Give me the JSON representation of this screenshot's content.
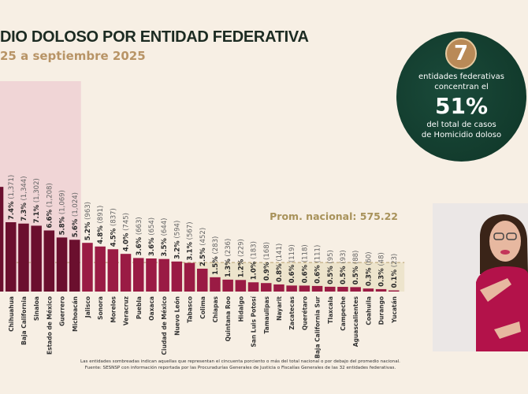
{
  "header": {
    "title": "DIO DOLOSO POR ENTIDAD FEDERATIVA",
    "subtitle": "25 a septiembre 2025"
  },
  "average_label": "Prom. nacional: 575.22",
  "notes": [
    "Las entidades sombreadas indican aquellas que representan el cincuenta porciento o más del total nacional o por debajo del promedio nacional.",
    "Fuente: SESNSP con información reportada por las Procuradurías Generales de Justicia o Fiscalías Generales de las 32 entidades federativas."
  ],
  "callout": {
    "number": "7",
    "line1": "entidades federativas",
    "line2": "concentran el",
    "percent": "51%",
    "line3": "del total de casos",
    "line4": "de Homicidio doloso"
  },
  "colors": {
    "highlight_bar": "#6b0f2e",
    "bar": "#9a1b44",
    "highlight_band": "#f0d5d6",
    "below_avg_band": "#ede4cc",
    "avg_line": "#b8a070",
    "circle": "#0f3527",
    "badge": "#b98a57"
  },
  "chart_data": {
    "type": "bar",
    "average": 575.22,
    "categories": [
      "",
      "Chihuahua",
      "Baja California",
      "Sinaloa",
      "Estado de México",
      "Guerrero",
      "Michoacán",
      "Jalisco",
      "Sonora",
      "Morelos",
      "Veracruz",
      "Puebla",
      "Oaxaca",
      "Ciudad de México",
      "Nuevo León",
      "Tabasco",
      "Colima",
      "Chiapas",
      "Quintana Roo",
      "Hidalgo",
      "San Luis Potosí",
      "Tamaulipas",
      "Nayarit",
      "Zacatecas",
      "Querétaro",
      "Baja California Sur",
      "Tlaxcala",
      "Campeche",
      "Aguascalientes",
      "Coahuila",
      "Durango",
      "Yucatán"
    ],
    "values": [
      2070,
      1371,
      1344,
      1302,
      1208,
      1069,
      1024,
      963,
      891,
      837,
      745,
      663,
      654,
      644,
      594,
      567,
      452,
      283,
      236,
      229,
      183,
      168,
      141,
      119,
      118,
      111,
      95,
      93,
      88,
      60,
      48,
      23
    ],
    "labels_pct": [
      "",
      "7.4%",
      "7.3%",
      "7.1%",
      "6.6%",
      "5.8%",
      "5.6%",
      "5.2%",
      "4.8%",
      "4.5%",
      "4.0%",
      "3.6%",
      "3.6%",
      "3.5%",
      "3.2%",
      "3.1%",
      "2.5%",
      "1.5%",
      "1.3%",
      "1.2%",
      "1.0%",
      "0.9%",
      "0.8%",
      "0.6%",
      "0.6%",
      "0.6%",
      "0.5%",
      "0.5%",
      "0.5%",
      "0.3%",
      "0.3%",
      "0.1%"
    ],
    "labels_val": [
      "",
      "(1,371)",
      "(1,344)",
      "(1,302)",
      "(1,208)",
      "(1,069)",
      "(1,024)",
      "(963)",
      "(891)",
      "(837)",
      "(745)",
      "(663)",
      "(654)",
      "(644)",
      "(594)",
      "(567)",
      "(452)",
      "(283)",
      "(236)",
      "(229)",
      "(183)",
      "(168)",
      "(141)",
      "(119)",
      "(118)",
      "(111)",
      "(95)",
      "(93)",
      "(88)",
      "(60)",
      "(48)",
      "(23)"
    ],
    "highlighted_count": 7
  }
}
